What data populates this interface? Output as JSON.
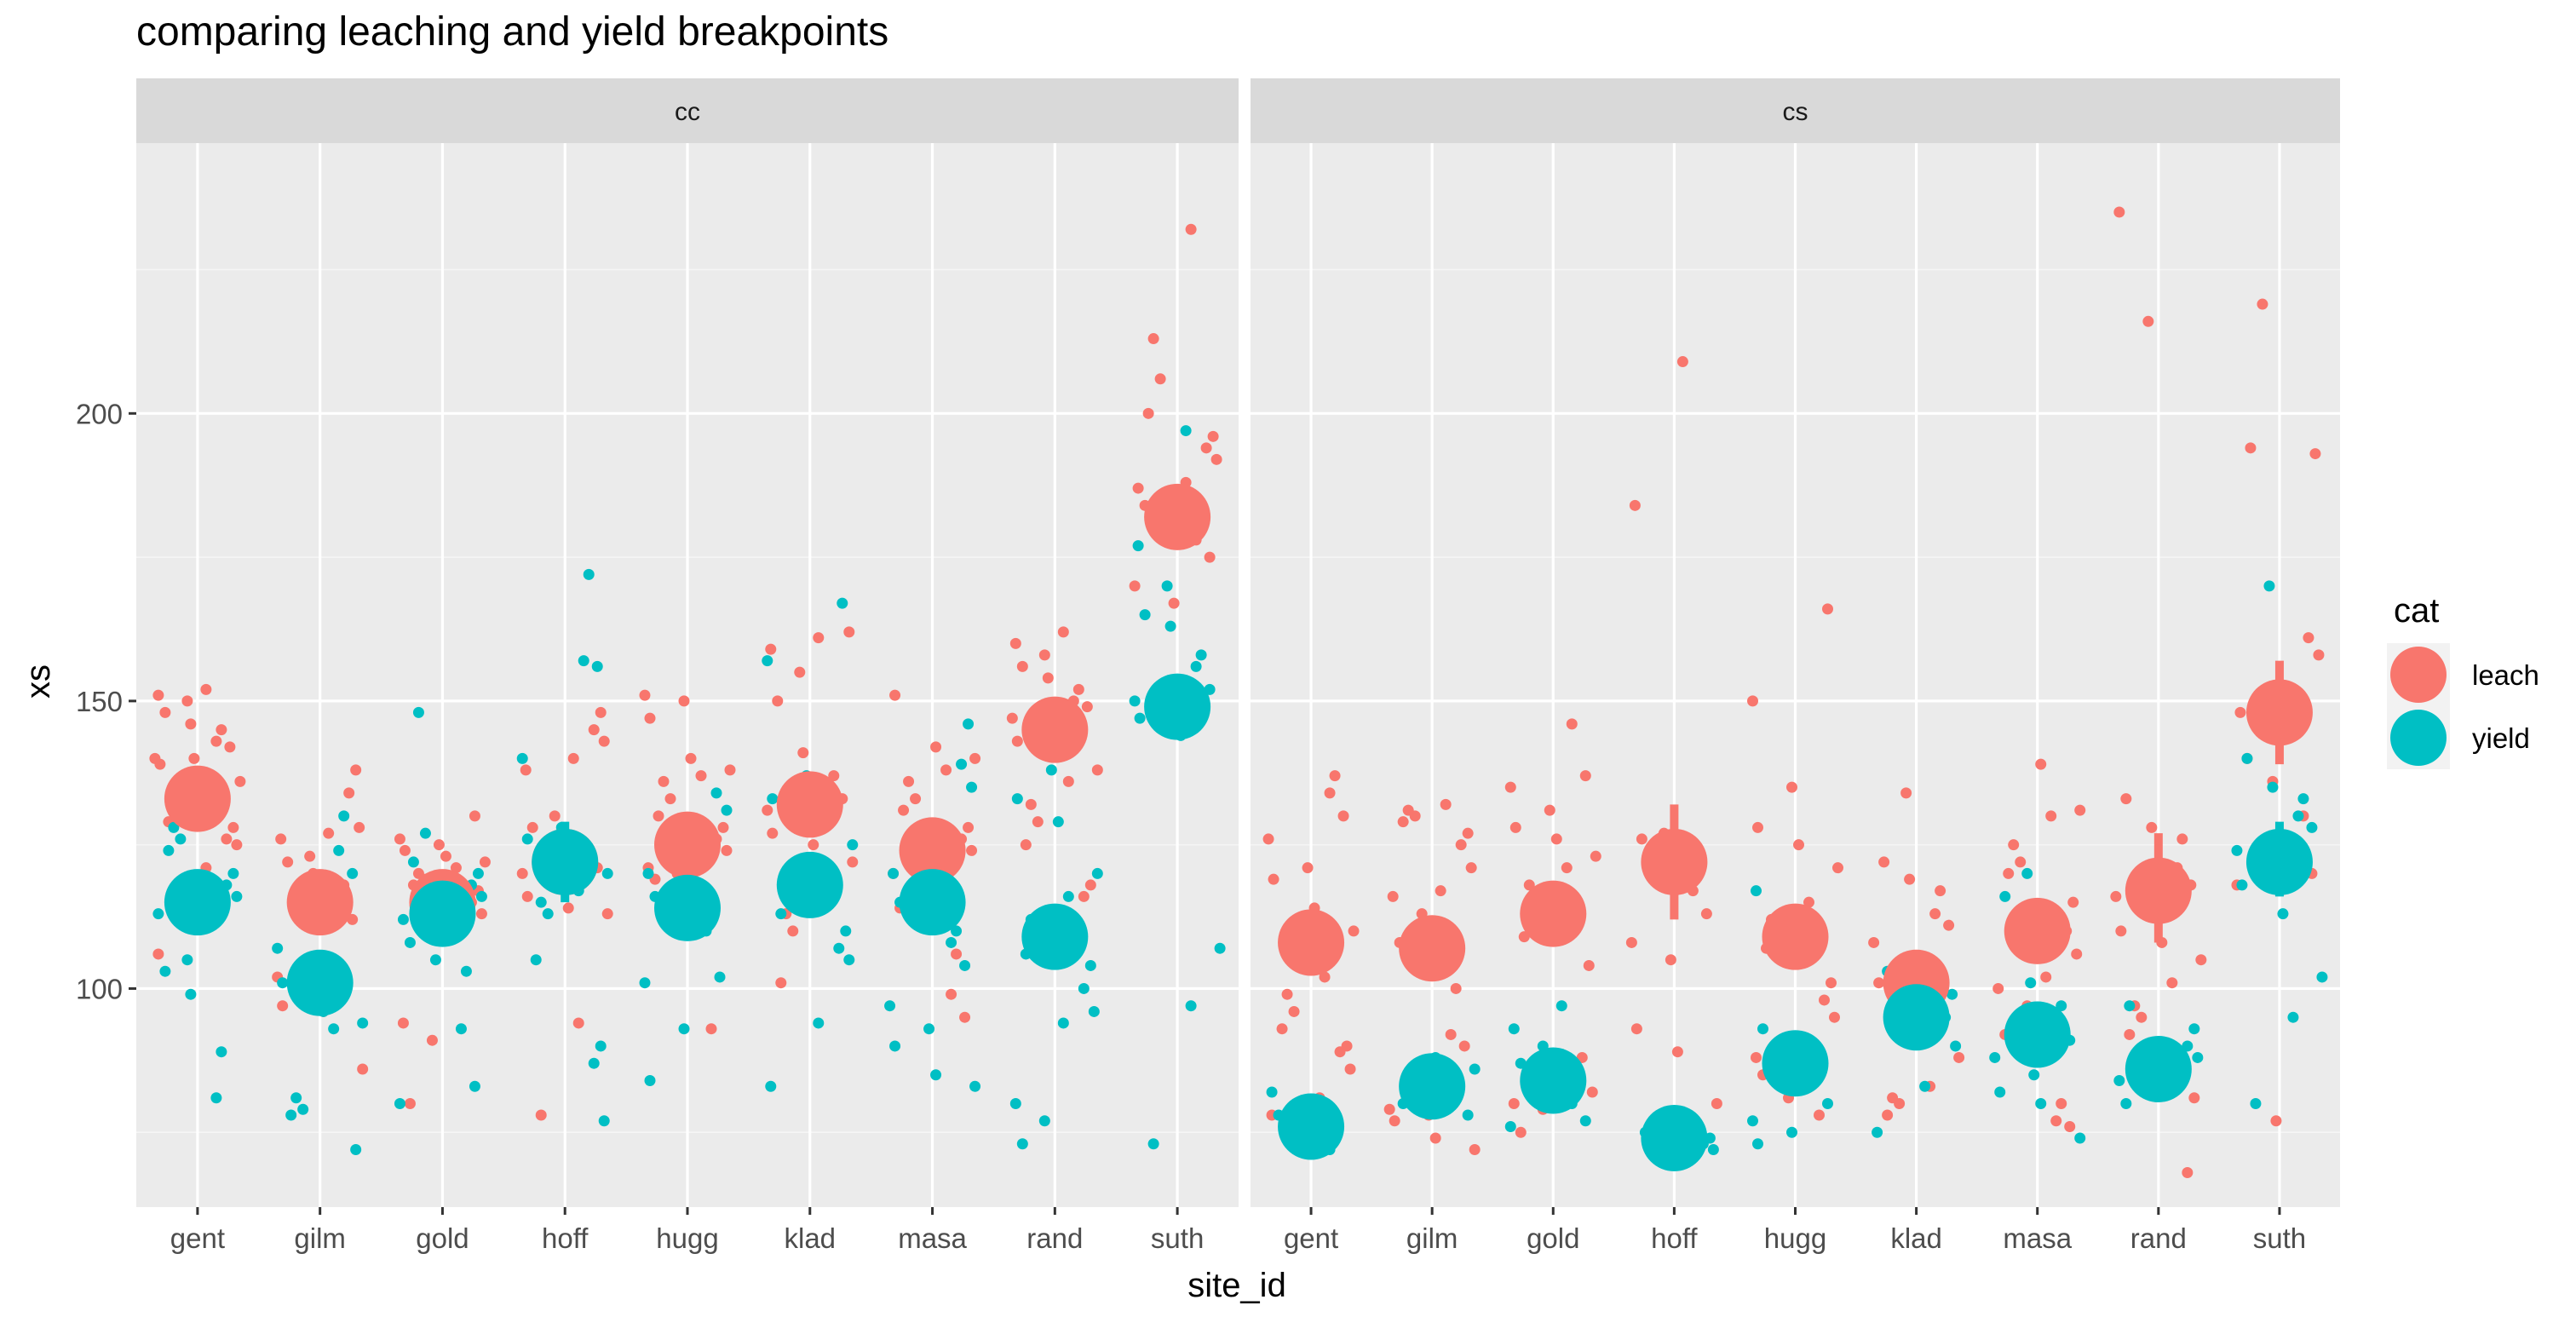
{
  "chart_data": {
    "type": "scatter",
    "title": "comparing leaching and yield breakpoints",
    "xlabel": "site_id",
    "ylabel": "xs",
    "categories": [
      "gent",
      "gilm",
      "gold",
      "hoff",
      "hugg",
      "klad",
      "masa",
      "rand",
      "suth"
    ],
    "ylim": [
      62,
      247
    ],
    "yticks": [
      100,
      150,
      200
    ],
    "facets": [
      "cc",
      "cs"
    ],
    "legend": {
      "title": "cat",
      "position": "right",
      "entries": [
        "leach",
        "yield"
      ]
    },
    "colors": {
      "leach": "#F8766D",
      "yield": "#00BFC4"
    },
    "grid": true,
    "means": {
      "cc": {
        "leach": [
          133,
          115,
          115,
          122,
          125,
          132,
          124,
          145,
          182
        ],
        "yield": [
          115,
          101,
          113,
          122,
          114,
          118,
          115,
          109,
          149
        ]
      },
      "cs": {
        "leach": [
          108,
          107,
          113,
          122,
          109,
          101,
          110,
          117,
          148
        ],
        "yield": [
          76,
          83,
          84,
          74,
          87,
          95,
          92,
          86,
          122
        ]
      }
    },
    "error_bars": {
      "cc": {
        "leach": [
          [
            131,
            135
          ],
          [
            113,
            117
          ],
          [
            113,
            117
          ],
          [
            120,
            124
          ],
          [
            123,
            127
          ],
          [
            130,
            134
          ],
          [
            122,
            126
          ],
          [
            143,
            147
          ],
          [
            180,
            184
          ]
        ],
        "yield": [
          [
            113,
            117
          ],
          [
            99,
            103
          ],
          [
            111,
            115
          ],
          [
            115,
            129
          ],
          [
            112,
            116
          ],
          [
            116,
            120
          ],
          [
            113,
            117
          ],
          [
            107,
            111
          ],
          [
            147,
            151
          ]
        ]
      },
      "cs": {
        "leach": [
          [
            106,
            110
          ],
          [
            105,
            109
          ],
          [
            111,
            115
          ],
          [
            112,
            132
          ],
          [
            107,
            111
          ],
          [
            99,
            103
          ],
          [
            108,
            112
          ],
          [
            108,
            127
          ],
          [
            139,
            157
          ]
        ],
        "yield": [
          [
            74,
            78
          ],
          [
            81,
            85
          ],
          [
            82,
            86
          ],
          [
            72,
            76
          ],
          [
            85,
            89
          ],
          [
            93,
            97
          ],
          [
            90,
            94
          ],
          [
            84,
            88
          ],
          [
            116,
            129
          ]
        ]
      }
    },
    "points": {
      "cc": {
        "leach": [
          [
            106,
            121,
            125,
            126,
            128,
            129,
            130,
            133,
            134,
            136,
            137,
            139,
            140,
            140,
            142,
            143,
            145,
            146,
            148,
            150,
            151,
            152
          ],
          [
            86,
            96,
            97,
            101,
            102,
            112,
            116,
            118,
            120,
            122,
            123,
            126,
            127,
            128,
            134,
            138
          ],
          [
            80,
            91,
            94,
            110,
            113,
            115,
            117,
            118,
            119,
            120,
            121,
            122,
            123,
            124,
            125,
            126,
            130
          ],
          [
            78,
            94,
            113,
            114,
            116,
            118,
            120,
            121,
            122,
            124,
            126,
            128,
            130,
            138,
            140,
            143,
            145,
            148
          ],
          [
            93,
            117,
            119,
            120,
            121,
            122,
            124,
            126,
            128,
            130,
            133,
            136,
            137,
            138,
            140,
            147,
            150,
            151
          ],
          [
            101,
            110,
            113,
            119,
            122,
            125,
            127,
            129,
            131,
            133,
            135,
            137,
            141,
            150,
            155,
            159,
            161,
            162
          ],
          [
            95,
            99,
            106,
            111,
            114,
            117,
            120,
            122,
            124,
            126,
            128,
            131,
            133,
            136,
            138,
            140,
            142,
            151
          ],
          [
            116,
            118,
            125,
            129,
            132,
            136,
            138,
            141,
            143,
            145,
            147,
            149,
            150,
            152,
            154,
            156,
            158,
            160,
            162
          ],
          [
            167,
            170,
            175,
            178,
            180,
            182,
            184,
            186,
            187,
            188,
            192,
            194,
            196,
            200,
            206,
            213,
            232
          ]
        ],
        "yield": [
          [
            81,
            89,
            99,
            103,
            105,
            113,
            115,
            116,
            118,
            120,
            124,
            126,
            128
          ],
          [
            72,
            78,
            79,
            81,
            93,
            94,
            96,
            101,
            102,
            107,
            120,
            124,
            130
          ],
          [
            80,
            83,
            93,
            103,
            105,
            108,
            110,
            112,
            114,
            116,
            118,
            120,
            122,
            127,
            148
          ],
          [
            77,
            87,
            90,
            105,
            113,
            115,
            117,
            120,
            124,
            126,
            128,
            140,
            156,
            157,
            172
          ],
          [
            84,
            93,
            101,
            102,
            110,
            112,
            114,
            116,
            118,
            120,
            122,
            131,
            134
          ],
          [
            83,
            94,
            105,
            107,
            110,
            113,
            116,
            119,
            121,
            125,
            128,
            133,
            137,
            157,
            167
          ],
          [
            83,
            85,
            90,
            93,
            97,
            104,
            108,
            110,
            112,
            115,
            118,
            120,
            127,
            135,
            139,
            146
          ],
          [
            73,
            77,
            80,
            94,
            96,
            100,
            104,
            106,
            110,
            112,
            116,
            120,
            129,
            133,
            138
          ],
          [
            73,
            97,
            107,
            144,
            147,
            149,
            150,
            152,
            156,
            158,
            163,
            165,
            170,
            177,
            197
          ]
        ]
      },
      "cs": {
        "leach": [
          [
            78,
            81,
            86,
            89,
            90,
            93,
            96,
            99,
            102,
            110,
            114,
            119,
            121,
            126,
            130,
            134,
            137
          ],
          [
            72,
            74,
            77,
            78,
            79,
            90,
            92,
            100,
            104,
            108,
            113,
            116,
            117,
            121,
            125,
            127,
            129,
            130,
            131,
            132
          ],
          [
            75,
            79,
            80,
            81,
            82,
            88,
            104,
            109,
            113,
            118,
            121,
            123,
            126,
            128,
            131,
            135,
            137,
            146
          ],
          [
            73,
            76,
            80,
            89,
            93,
            105,
            108,
            113,
            117,
            120,
            123,
            126,
            127,
            184,
            209
          ],
          [
            78,
            81,
            85,
            87,
            88,
            90,
            95,
            98,
            101,
            107,
            110,
            112,
            115,
            121,
            125,
            128,
            135,
            150,
            166
          ],
          [
            78,
            80,
            81,
            83,
            88,
            98,
            101,
            104,
            108,
            111,
            113,
            117,
            119,
            122,
            134
          ],
          [
            76,
            77,
            80,
            88,
            92,
            97,
            100,
            102,
            106,
            110,
            115,
            120,
            122,
            125,
            130,
            131,
            139
          ],
          [
            68,
            81,
            92,
            95,
            97,
            101,
            105,
            108,
            110,
            113,
            116,
            118,
            121,
            126,
            128,
            133,
            216,
            235
          ],
          [
            77,
            118,
            120,
            125,
            130,
            136,
            140,
            144,
            148,
            152,
            158,
            161,
            193,
            194,
            219
          ]
        ],
        "yield": [
          [
            72,
            75,
            76,
            78,
            80,
            82
          ],
          [
            78,
            80,
            82,
            84,
            85,
            86,
            88
          ],
          [
            76,
            77,
            80,
            83,
            85,
            87,
            90,
            93,
            97
          ],
          [
            72,
            73,
            74,
            75,
            76
          ],
          [
            73,
            75,
            77,
            80,
            85,
            89,
            91,
            93,
            113,
            117
          ],
          [
            75,
            83,
            90,
            95,
            99,
            103
          ],
          [
            74,
            80,
            82,
            85,
            88,
            91,
            93,
            97,
            101,
            116,
            120
          ],
          [
            80,
            82,
            84,
            86,
            88,
            90,
            93,
            97
          ],
          [
            80,
            95,
            102,
            113,
            118,
            121,
            124,
            128,
            130,
            133,
            135,
            140,
            170
          ]
        ]
      }
    }
  }
}
